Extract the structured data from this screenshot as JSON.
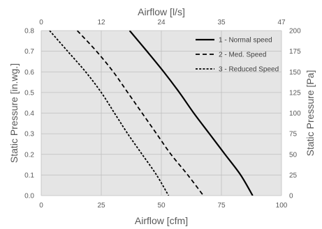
{
  "chart_data": {
    "type": "line",
    "x_bottom": {
      "title": "Airflow [cfm]",
      "range": [
        0,
        100
      ],
      "ticks": [
        "0",
        "25",
        "50",
        "75",
        "100"
      ]
    },
    "x_top": {
      "title": "Airflow [l/s]",
      "range": [
        0,
        47
      ],
      "ticks": [
        "0",
        "12",
        "24",
        "35",
        "47"
      ]
    },
    "y_left": {
      "title": "Static Pressure [in.wg.]",
      "range": [
        0,
        0.8
      ],
      "ticks": [
        "0.0",
        "0.1",
        "0.2",
        "0.3",
        "0.4",
        "0.5",
        "0.6",
        "0.7",
        "0.8"
      ]
    },
    "y_right": {
      "title": "Static Pressure [Pa]",
      "range": [
        0,
        200
      ],
      "ticks": [
        "0",
        "25",
        "50",
        "75",
        "100",
        "125",
        "150",
        "175",
        "200"
      ]
    },
    "grid": true,
    "legend_position": "top-right",
    "plot_background": "#e5e5e5",
    "series": [
      {
        "name": "1 - Normal speed",
        "style": "solid",
        "color": "#000000",
        "points": [
          [
            36.8,
            0.8
          ],
          [
            44,
            0.7
          ],
          [
            51,
            0.6
          ],
          [
            57.5,
            0.5
          ],
          [
            63.5,
            0.4
          ],
          [
            70,
            0.3
          ],
          [
            76.5,
            0.2
          ],
          [
            83,
            0.1
          ],
          [
            88,
            0.0
          ]
        ]
      },
      {
        "name": "2 - Med. Speed",
        "style": "dashed",
        "color": "#000000",
        "points": [
          [
            15,
            0.8
          ],
          [
            23,
            0.7
          ],
          [
            30,
            0.6
          ],
          [
            36,
            0.5
          ],
          [
            42,
            0.4
          ],
          [
            48,
            0.3
          ],
          [
            54,
            0.2
          ],
          [
            61,
            0.1
          ],
          [
            67.5,
            0.0
          ]
        ]
      },
      {
        "name": "3 - Reduced Speed",
        "style": "dotted",
        "color": "#000000",
        "points": [
          [
            3.5,
            0.8
          ],
          [
            11,
            0.7
          ],
          [
            18.5,
            0.6
          ],
          [
            25,
            0.5
          ],
          [
            30.5,
            0.4
          ],
          [
            36,
            0.3
          ],
          [
            42,
            0.2
          ],
          [
            48,
            0.1
          ],
          [
            53,
            0.0
          ]
        ]
      }
    ]
  }
}
